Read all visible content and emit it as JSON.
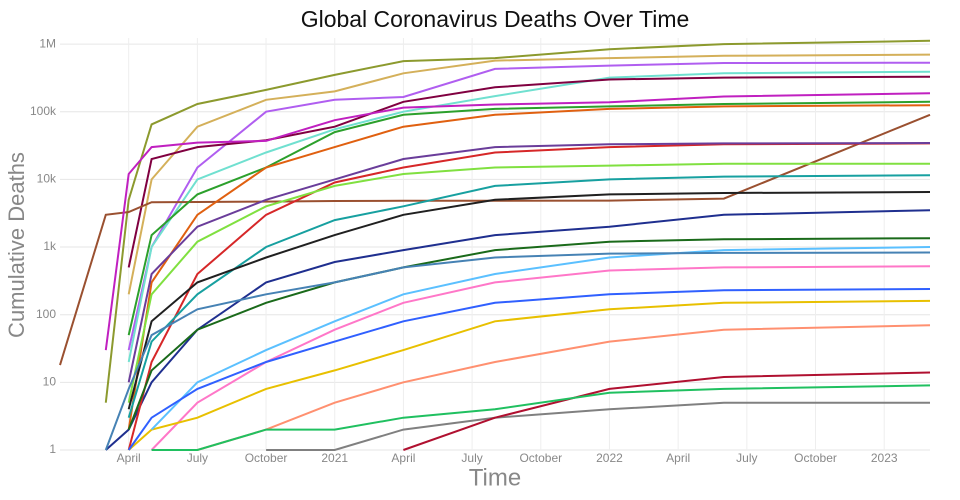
{
  "chart_data": {
    "type": "line",
    "title": "Global Coronavirus Deaths Over Time",
    "x_label": "Time",
    "y_label": "Cumulative Deaths",
    "log_y": true,
    "grid": true,
    "x": [
      "2020-01",
      "2020-03",
      "2020-04",
      "2020-05",
      "2020-07",
      "2020-10",
      "2021-01",
      "2021-04",
      "2021-08",
      "2022-01",
      "2022-06",
      "2023-03"
    ],
    "xlim": [
      "2020-01",
      "2023-03"
    ],
    "xticks": [
      {
        "value": "2020-04",
        "label": "April"
      },
      {
        "value": "2020-07",
        "label": "July"
      },
      {
        "value": "2020-10",
        "label": "October"
      },
      {
        "value": "2021-01",
        "label": "2021"
      },
      {
        "value": "2021-04",
        "label": "April"
      },
      {
        "value": "2021-07",
        "label": "July"
      },
      {
        "value": "2021-10",
        "label": "October"
      },
      {
        "value": "2022-01",
        "label": "2022"
      },
      {
        "value": "2022-04",
        "label": "April"
      },
      {
        "value": "2022-07",
        "label": "July"
      },
      {
        "value": "2022-10",
        "label": "October"
      },
      {
        "value": "2023-01",
        "label": "2023"
      }
    ],
    "ylim": [
      1,
      1230000
    ],
    "yticks": [
      1,
      10,
      100,
      {
        "value": 1000,
        "label": "1k"
      },
      {
        "value": 10000,
        "label": "10k"
      },
      {
        "value": 100000,
        "label": "100k"
      },
      {
        "value": 1000000,
        "label": "1M"
      }
    ],
    "series": [
      {
        "color": "#8c9a2e",
        "values": [
          null,
          5,
          5000,
          65000,
          130000,
          210000,
          350000,
          560000,
          620000,
          840000,
          1000000,
          1120000
        ]
      },
      {
        "color": "#d4b05a",
        "values": [
          null,
          null,
          200,
          10000,
          60000,
          150000,
          200000,
          370000,
          570000,
          620000,
          670000,
          700000
        ]
      },
      {
        "color": "#b05ef0",
        "values": [
          null,
          null,
          30,
          1000,
          15000,
          100000,
          150000,
          165000,
          430000,
          480000,
          525000,
          530000
        ]
      },
      {
        "color": "#70e0d0",
        "values": [
          null,
          null,
          20,
          1000,
          10000,
          25000,
          55000,
          100000,
          170000,
          320000,
          370000,
          390000
        ]
      },
      {
        "color": "#800040",
        "values": [
          null,
          null,
          500,
          20000,
          30000,
          38000,
          60000,
          140000,
          230000,
          300000,
          320000,
          330000
        ]
      },
      {
        "color": "#9a5030",
        "values": [
          18,
          3000,
          3300,
          4600,
          4630,
          4700,
          4800,
          4830,
          4840,
          4850,
          5200,
          90000
        ]
      },
      {
        "color": "#c020c0",
        "values": [
          null,
          30,
          12000,
          30000,
          35000,
          37000,
          75000,
          115000,
          128000,
          138000,
          168000,
          188000
        ]
      },
      {
        "color": "#2ca02c",
        "values": [
          null,
          null,
          50,
          1500,
          6000,
          15000,
          50000,
          90000,
          110000,
          120000,
          130000,
          140000
        ]
      },
      {
        "color": "#e06010",
        "values": [
          null,
          null,
          2,
          300,
          3000,
          15000,
          30000,
          60000,
          90000,
          110000,
          120000,
          125000
        ]
      },
      {
        "color": "#1f2f8f",
        "values": [
          null,
          1,
          2,
          10,
          60,
          300,
          600,
          900,
          1500,
          2000,
          3000,
          3500
        ]
      },
      {
        "color": "#d62728",
        "values": [
          null,
          null,
          1,
          20,
          400,
          3000,
          9000,
          15000,
          25000,
          30000,
          33000,
          34000
        ]
      },
      {
        "color": "#17a0a0",
        "values": [
          null,
          null,
          3,
          40,
          200,
          1000,
          2500,
          4000,
          8000,
          10000,
          11000,
          11500
        ]
      },
      {
        "color": "#ff77c8",
        "values": [
          null,
          null,
          null,
          1,
          5,
          20,
          60,
          150,
          300,
          450,
          500,
          520
        ]
      },
      {
        "color": "#e8c000",
        "values": [
          null,
          null,
          1,
          2,
          3,
          8,
          15,
          30,
          80,
          120,
          150,
          160
        ]
      },
      {
        "color": "#808080",
        "values": [
          null,
          null,
          null,
          null,
          null,
          1,
          1,
          2,
          3,
          4,
          5,
          5
        ]
      },
      {
        "color": "#80e040",
        "values": [
          null,
          null,
          5,
          200,
          1200,
          4000,
          8000,
          12000,
          15000,
          16000,
          17000,
          17000
        ]
      },
      {
        "color": "#6a3d9a",
        "values": [
          null,
          null,
          10,
          400,
          2000,
          5000,
          10000,
          20000,
          30000,
          33000,
          34000,
          34500
        ]
      },
      {
        "color": "#5bc0ff",
        "values": [
          null,
          null,
          null,
          2,
          10,
          30,
          80,
          200,
          400,
          700,
          900,
          1000
        ]
      },
      {
        "color": "#1a6a1a",
        "values": [
          null,
          null,
          2,
          15,
          60,
          150,
          300,
          500,
          900,
          1200,
          1300,
          1350
        ]
      },
      {
        "color": "#ff9070",
        "values": [
          null,
          null,
          null,
          null,
          1,
          2,
          5,
          10,
          20,
          40,
          60,
          70
        ]
      },
      {
        "color": "#202020",
        "values": [
          null,
          null,
          4,
          80,
          300,
          700,
          1500,
          3000,
          5000,
          6000,
          6300,
          6500
        ]
      },
      {
        "color": "#3060ff",
        "values": [
          null,
          null,
          1,
          3,
          8,
          20,
          40,
          80,
          150,
          200,
          230,
          240
        ]
      },
      {
        "color": "#b01030",
        "values": [
          null,
          null,
          null,
          null,
          null,
          null,
          null,
          1,
          3,
          8,
          12,
          14
        ]
      },
      {
        "color": "#20c060",
        "values": [
          null,
          null,
          null,
          1,
          1,
          2,
          2,
          3,
          4,
          7,
          8,
          9
        ]
      },
      {
        "color": "#4682b4",
        "values": [
          null,
          1,
          8,
          50,
          120,
          200,
          300,
          500,
          700,
          800,
          820,
          830
        ]
      }
    ]
  }
}
